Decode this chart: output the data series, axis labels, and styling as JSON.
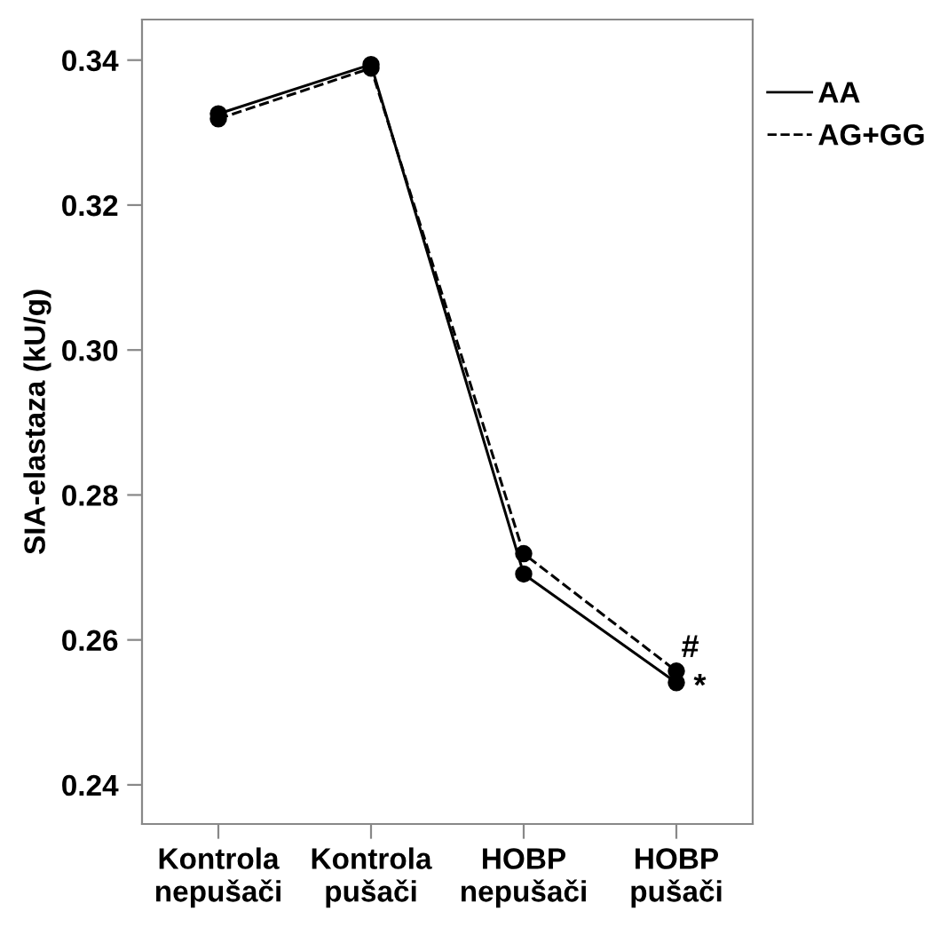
{
  "chart_data": {
    "type": "line",
    "ylabel": "SIA-elastaza (kU/g)",
    "categories": [
      "Kontrola\nnepušači",
      "Kontrola\npušači",
      "HOBP\nnepušači",
      "HOBP\npušači"
    ],
    "series": [
      {
        "name": "AA",
        "color": "#000000",
        "values": [
          0.3326,
          0.3394,
          0.2691,
          0.2541
        ],
        "line_style": "solid"
      },
      {
        "name": "AG+GG",
        "color": "#000000",
        "values": [
          0.3319,
          0.3389,
          0.2719,
          0.2557
        ],
        "line_style": "dashed"
      }
    ],
    "ylim": [
      0.2346,
      0.3456
    ],
    "yticks": [
      0.24,
      0.26,
      0.28,
      {
        "value": 0.3,
        "label": "0.30"
      },
      0.32,
      0.34
    ],
    "marker": "circle",
    "legend": "right",
    "grid": false,
    "annotations": [
      {
        "text": "#",
        "x": "HOBP\npušači",
        "y": 0.2557
      },
      {
        "text": "*",
        "x": "HOBP\npušači",
        "y": 0.2541
      }
    ]
  }
}
